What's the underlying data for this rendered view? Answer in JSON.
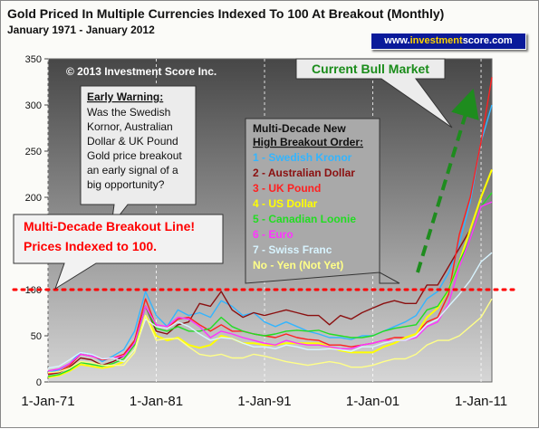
{
  "header": {
    "title": "Gold Priced In Multiple Currencies Indexed To 100 At Breakout (Monthly)",
    "subtitle": "January 1971 - January 2012",
    "url_prefix": "www.",
    "url_highlight": "investment",
    "url_suffix": "score.com"
  },
  "copyright": "© 2013 Investment Score Inc.",
  "callouts": {
    "bull_market": "Current Bull Market",
    "early_warning": {
      "heading": "Early Warning:",
      "lines": [
        "Was the Swedish",
        "Kornor, Australian",
        "Dollar & UK Pound",
        "Gold price breakout",
        "an early signal of a",
        "big opportunity?"
      ]
    },
    "breakout_line": {
      "line1": "Multi-Decade Breakout Line!",
      "line2": "Prices Indexed to 100."
    },
    "order": {
      "heading1": "Multi-Decade New",
      "heading2": "High Breakout Order:"
    }
  },
  "colors": {
    "plot_bg_top": "#4a4a4a",
    "plot_bg_bottom": "#d8d8d8",
    "breakout_line": "#ff0000",
    "bull_arrow": "#1e8c1e",
    "callout_bg": "#ececec"
  },
  "chart_data": {
    "type": "line",
    "xlim": [
      1971.0,
      2012.0
    ],
    "ylim": [
      0,
      350
    ],
    "y_ticks": [
      0,
      50,
      100,
      150,
      200,
      250,
      300,
      350
    ],
    "x_tick_labels": [
      "1-Jan-71",
      "1-Jan-81",
      "1-Jan-91",
      "1-Jan-01",
      "1-Jan-11"
    ],
    "x_tick_positions": [
      1971.0,
      1981.0,
      1991.0,
      2001.0,
      2011.0
    ],
    "reference_line": 100,
    "series": [
      {
        "name": "1 - Swedish Kronor",
        "color": "#33b5ff",
        "x": [
          1971,
          1972,
          1973,
          1974,
          1975,
          1976,
          1977,
          1978,
          1979,
          1980,
          1981,
          1982,
          1983,
          1984,
          1985,
          1986,
          1987,
          1988,
          1989,
          1990,
          1991,
          1992,
          1993,
          1994,
          1995,
          1996,
          1997,
          1998,
          1999,
          2000,
          2001,
          2002,
          2003,
          2004,
          2005,
          2006,
          2007,
          2008,
          2009,
          2010,
          2011,
          2012
        ],
        "values": [
          10,
          13,
          20,
          32,
          30,
          22,
          28,
          35,
          55,
          98,
          72,
          60,
          78,
          72,
          75,
          70,
          88,
          82,
          72,
          75,
          65,
          60,
          65,
          60,
          55,
          52,
          48,
          48,
          46,
          50,
          50,
          55,
          60,
          65,
          72,
          90,
          98,
          118,
          150,
          195,
          260,
          300
        ]
      },
      {
        "name": "2 - Australian Dollar",
        "color": "#8b1010",
        "x": [
          1971,
          1972,
          1973,
          1974,
          1975,
          1976,
          1977,
          1978,
          1979,
          1980,
          1981,
          1982,
          1983,
          1984,
          1985,
          1986,
          1987,
          1988,
          1989,
          1990,
          1991,
          1992,
          1993,
          1994,
          1995,
          1996,
          1997,
          1998,
          1999,
          2000,
          2001,
          2002,
          2003,
          2004,
          2005,
          2006,
          2007,
          2008,
          2009,
          2010,
          2011,
          2012
        ],
        "values": [
          8,
          10,
          16,
          26,
          24,
          18,
          22,
          28,
          45,
          82,
          55,
          52,
          62,
          65,
          85,
          82,
          98,
          78,
          70,
          75,
          72,
          75,
          78,
          75,
          72,
          72,
          62,
          72,
          68,
          75,
          80,
          85,
          88,
          85,
          85,
          105,
          105,
          125,
          145,
          165,
          200,
          230
        ]
      },
      {
        "name": "3 - UK Pound",
        "color": "#ff2020",
        "x": [
          1971,
          1972,
          1973,
          1974,
          1975,
          1976,
          1977,
          1978,
          1979,
          1980,
          1981,
          1982,
          1983,
          1984,
          1985,
          1986,
          1987,
          1988,
          1989,
          1990,
          1991,
          1992,
          1993,
          1994,
          1995,
          1996,
          1997,
          1998,
          1999,
          2000,
          2001,
          2002,
          2003,
          2004,
          2005,
          2006,
          2007,
          2008,
          2009,
          2010,
          2011,
          2012
        ],
        "values": [
          9,
          11,
          18,
          30,
          28,
          24,
          26,
          30,
          45,
          90,
          60,
          58,
          68,
          70,
          62,
          55,
          62,
          55,
          55,
          52,
          50,
          48,
          52,
          48,
          46,
          45,
          40,
          40,
          38,
          40,
          42,
          45,
          48,
          48,
          52,
          65,
          70,
          95,
          160,
          200,
          260,
          330
        ]
      },
      {
        "name": "4 - US Dollar",
        "color": "#ffff00",
        "x": [
          1971,
          1972,
          1973,
          1974,
          1975,
          1976,
          1977,
          1978,
          1979,
          1980,
          1981,
          1982,
          1983,
          1984,
          1985,
          1986,
          1987,
          1988,
          1989,
          1990,
          1991,
          1992,
          1993,
          1994,
          1995,
          1996,
          1997,
          1998,
          1999,
          2000,
          2001,
          2002,
          2003,
          2004,
          2005,
          2006,
          2007,
          2008,
          2009,
          2010,
          2011,
          2012
        ],
        "values": [
          5,
          7,
          12,
          19,
          17,
          15,
          17,
          22,
          35,
          72,
          50,
          45,
          48,
          40,
          37,
          40,
          50,
          47,
          42,
          42,
          40,
          40,
          42,
          42,
          42,
          42,
          38,
          34,
          32,
          32,
          32,
          38,
          42,
          48,
          52,
          70,
          80,
          100,
          130,
          165,
          200,
          230
        ]
      },
      {
        "name": "5 - Canadian Loonie",
        "color": "#22dd22",
        "x": [
          1971,
          1972,
          1973,
          1974,
          1975,
          1976,
          1977,
          1978,
          1979,
          1980,
          1981,
          1982,
          1983,
          1984,
          1985,
          1986,
          1987,
          1988,
          1989,
          1990,
          1991,
          1992,
          1993,
          1994,
          1995,
          1996,
          1997,
          1998,
          1999,
          2000,
          2001,
          2002,
          2003,
          2004,
          2005,
          2006,
          2007,
          2008,
          2009,
          2010,
          2011,
          2012
        ],
        "values": [
          6,
          8,
          13,
          21,
          19,
          17,
          20,
          25,
          40,
          82,
          58,
          55,
          60,
          55,
          55,
          58,
          70,
          60,
          55,
          52,
          50,
          52,
          55,
          56,
          55,
          56,
          52,
          50,
          48,
          48,
          50,
          55,
          58,
          60,
          62,
          78,
          82,
          100,
          130,
          155,
          190,
          205
        ]
      },
      {
        "name": "6 - Euro",
        "color": "#ff33ff",
        "x": [
          1971,
          1972,
          1973,
          1974,
          1975,
          1976,
          1977,
          1978,
          1979,
          1980,
          1981,
          1982,
          1983,
          1984,
          1985,
          1986,
          1987,
          1988,
          1989,
          1990,
          1991,
          1992,
          1993,
          1994,
          1995,
          1996,
          1997,
          1998,
          1999,
          2000,
          2001,
          2002,
          2003,
          2004,
          2005,
          2006,
          2007,
          2008,
          2009,
          2010,
          2011,
          2012
        ],
        "values": [
          12,
          14,
          20,
          30,
          28,
          25,
          26,
          28,
          42,
          82,
          62,
          60,
          70,
          68,
          60,
          48,
          55,
          52,
          48,
          45,
          42,
          40,
          45,
          42,
          40,
          40,
          38,
          36,
          36,
          40,
          42,
          45,
          45,
          45,
          48,
          60,
          65,
          85,
          125,
          155,
          190,
          195
        ]
      },
      {
        "name": "7 - Swiss Franc",
        "color": "#d8f4ff",
        "x": [
          1971,
          1972,
          1973,
          1974,
          1975,
          1976,
          1977,
          1978,
          1979,
          1980,
          1981,
          1982,
          1983,
          1984,
          1985,
          1986,
          1987,
          1988,
          1989,
          1990,
          1991,
          1992,
          1993,
          1994,
          1995,
          1996,
          1997,
          1998,
          1999,
          2000,
          2001,
          2002,
          2003,
          2004,
          2005,
          2006,
          2007,
          2008,
          2009,
          2010,
          2011,
          2012
        ],
        "values": [
          15,
          17,
          24,
          32,
          30,
          25,
          26,
          22,
          35,
          68,
          60,
          58,
          65,
          60,
          52,
          45,
          48,
          47,
          42,
          38,
          38,
          36,
          40,
          38,
          35,
          35,
          36,
          35,
          33,
          38,
          38,
          42,
          45,
          45,
          50,
          62,
          68,
          82,
          95,
          110,
          130,
          140
        ]
      },
      {
        "name": "No - Yen (Not Yet)",
        "color": "#ffff88",
        "x": [
          1971,
          1972,
          1973,
          1974,
          1975,
          1976,
          1977,
          1978,
          1979,
          1980,
          1981,
          1982,
          1983,
          1984,
          1985,
          1986,
          1987,
          1988,
          1989,
          1990,
          1991,
          1992,
          1993,
          1994,
          1995,
          1996,
          1997,
          1998,
          1999,
          2000,
          2001,
          2002,
          2003,
          2004,
          2005,
          2006,
          2007,
          2008,
          2009,
          2010,
          2011,
          2012
        ],
        "values": [
          10,
          11,
          15,
          22,
          21,
          18,
          18,
          18,
          32,
          72,
          45,
          47,
          47,
          38,
          30,
          28,
          30,
          26,
          26,
          30,
          28,
          25,
          22,
          20,
          18,
          20,
          22,
          20,
          16,
          16,
          18,
          22,
          25,
          25,
          30,
          40,
          45,
          45,
          50,
          60,
          70,
          90
        ]
      }
    ]
  }
}
